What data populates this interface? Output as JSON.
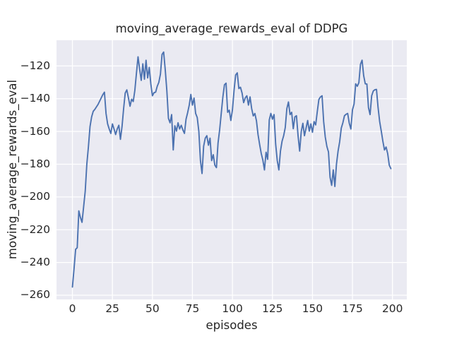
{
  "figure": {
    "title": "moving_average_rewards_eval of DDPG",
    "xlabel": "episodes",
    "ylabel": "moving_average_rewards_eval"
  },
  "chart_data": {
    "type": "line",
    "title": "moving_average_rewards_eval of DDPG",
    "xlabel": "episodes",
    "ylabel": "moving_average_rewards_eval",
    "x_ticks": [
      0,
      25,
      50,
      75,
      100,
      125,
      150,
      175,
      200
    ],
    "y_ticks": [
      -120,
      -140,
      -160,
      -180,
      -200,
      -220,
      -240,
      -260
    ],
    "xlim": [
      -9.95,
      208.95
    ],
    "ylim": [
      -262.6,
      -104.3
    ],
    "grid": true,
    "legend_position": "none",
    "style": {
      "figure_background": "#FFFFFF",
      "plot_background": "#EAEAF2",
      "grid_color": "#FFFFFF",
      "line_color": "#4C72B0",
      "text_color": "#262626"
    },
    "series": [
      {
        "name": "moving_average_rewards_eval",
        "x_start": 0,
        "x_step": 1,
        "values": [
          -255.0,
          -244.0,
          -232.0,
          -231.0,
          -208.5,
          -212.5,
          -215.5,
          -206.0,
          -196.5,
          -180.0,
          -169.3,
          -157.0,
          -151.1,
          -147.7,
          -146.5,
          -145.0,
          -143.5,
          -141.5,
          -139.5,
          -137.5,
          -136.0,
          -149.0,
          -155.4,
          -158.5,
          -161.2,
          -155.4,
          -158.5,
          -161.9,
          -158.5,
          -156.2,
          -164.8,
          -157.0,
          -146.0,
          -136.5,
          -134.6,
          -139.5,
          -144.6,
          -140.3,
          -141.7,
          -135.0,
          -124.5,
          -114.4,
          -122.0,
          -128.8,
          -118.7,
          -128.1,
          -116.5,
          -127.3,
          -120.9,
          -131.0,
          -138.2,
          -136.3,
          -136.0,
          -132.4,
          -130.0,
          -125.0,
          -113.0,
          -111.5,
          -122.3,
          -135.0,
          -152.0,
          -154.7,
          -149.7,
          -171.3,
          -156.5,
          -159.8,
          -154.7,
          -158.5,
          -156.2,
          -159.0,
          -161.2,
          -152.5,
          -148.5,
          -143.9,
          -137.4,
          -143.9,
          -139.6,
          -149.0,
          -151.5,
          -160.0,
          -177.8,
          -185.7,
          -169.0,
          -164.1,
          -162.6,
          -168.4,
          -164.1,
          -177.8,
          -174.2,
          -180.6,
          -182.1,
          -167.0,
          -159.0,
          -149.0,
          -139.0,
          -131.5,
          -130.5,
          -148.3,
          -147.0,
          -153.3,
          -146.8,
          -135.0,
          -125.5,
          -124.2,
          -133.8,
          -133.0,
          -136.5,
          -142.4,
          -139.5,
          -138.2,
          -143.9,
          -138.9,
          -146.0,
          -150.5,
          -149.0,
          -153.5,
          -162.0,
          -168.0,
          -173.5,
          -177.5,
          -183.5,
          -172.7,
          -177.0,
          -153.0,
          -149.0,
          -152.5,
          -149.7,
          -167.7,
          -177.8,
          -183.5,
          -172.0,
          -166.0,
          -162.6,
          -157.6,
          -146.0,
          -142.0,
          -149.7,
          -148.3,
          -158.3,
          -151.1,
          -150.4,
          -162.6,
          -172.0,
          -160.0,
          -155.0,
          -162.6,
          -158.0,
          -153.3,
          -159.8,
          -155.4,
          -160.5,
          -154.0,
          -156.0,
          -148.0,
          -140.5,
          -138.9,
          -138.2,
          -154.0,
          -163.4,
          -169.1,
          -172.5,
          -188.0,
          -192.9,
          -183.5,
          -193.6,
          -180.0,
          -172.0,
          -166.3,
          -158.0,
          -154.7,
          -150.4,
          -149.5,
          -149.0,
          -155.0,
          -158.5,
          -146.8,
          -143.2,
          -130.9,
          -132.4,
          -130.2,
          -119.0,
          -116.5,
          -125.9,
          -130.9,
          -131.0,
          -145.4,
          -149.7,
          -138.2,
          -135.3,
          -134.5,
          -134.3,
          -145.4,
          -154.0,
          -159.8,
          -166.0,
          -171.3,
          -169.5,
          -173.5,
          -180.6,
          -182.7
        ]
      }
    ]
  }
}
